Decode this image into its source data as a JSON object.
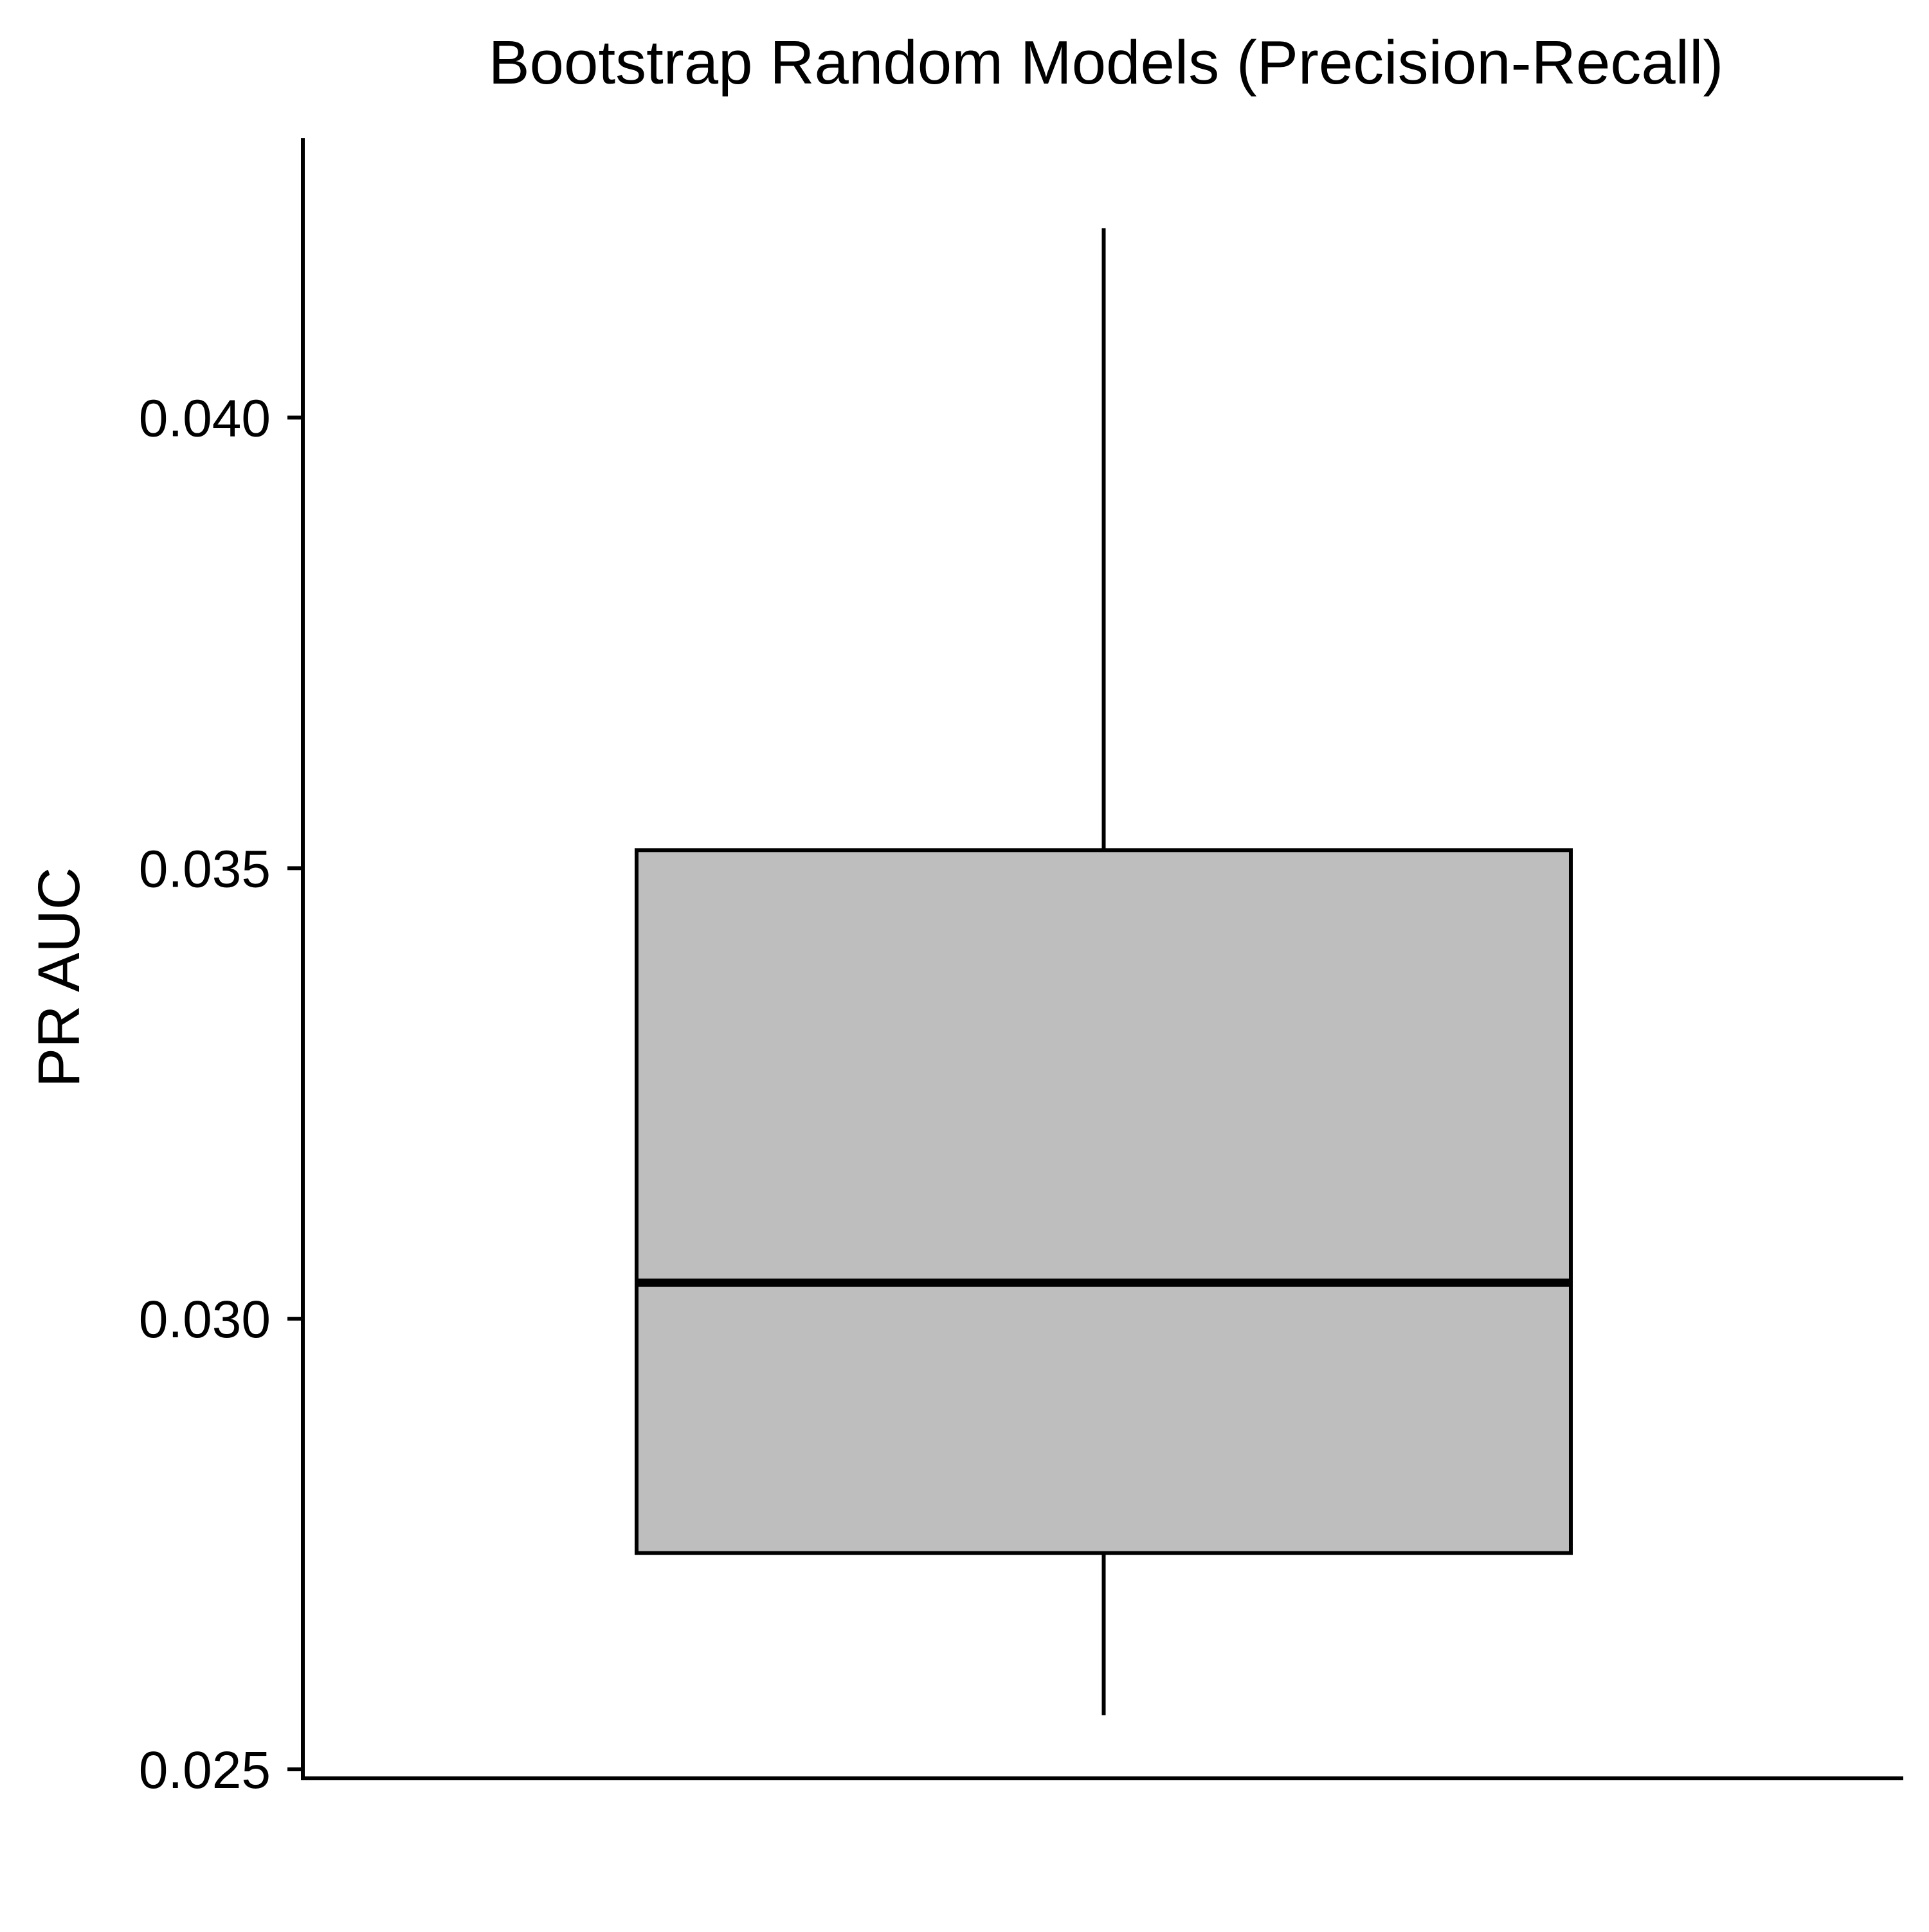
{
  "chart_data": {
    "type": "boxplot",
    "title": "Bootstrap Random Models (Precision-Recall)",
    "xlabel": "",
    "ylabel": "PR AUC",
    "ylim": [
      0.0249,
      0.0431
    ],
    "y_ticks": [
      0.025,
      0.03,
      0.035,
      0.04
    ],
    "y_tick_labels": [
      "0.025",
      "0.030",
      "0.035",
      "0.040"
    ],
    "grid": false,
    "legend": "none",
    "box": {
      "whisker_low": 0.0256,
      "q1": 0.0274,
      "median": 0.0304,
      "q3": 0.0352,
      "whisker_high": 0.0421
    },
    "colors": {
      "box_fill": "#bebebe",
      "line": "#000000"
    }
  }
}
